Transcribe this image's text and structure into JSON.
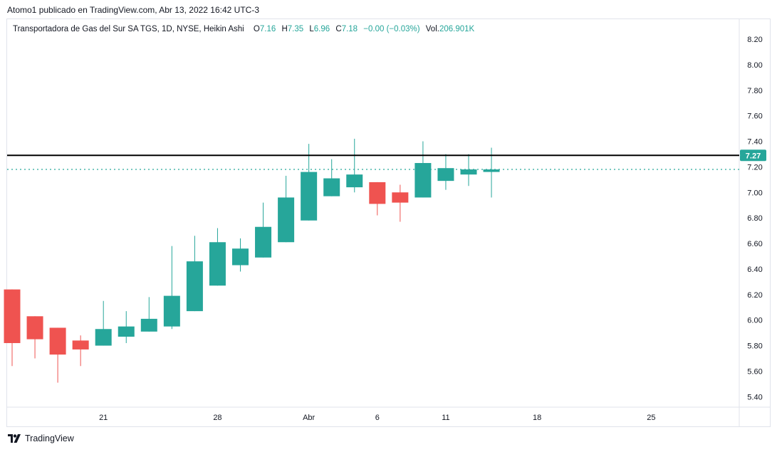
{
  "publish_line": "Atomo1 publicado en TradingView.com, Abr 13, 2022 16:42 UTC-3",
  "legend": {
    "symbol": "Transportadora de Gas del Sur SA TGS, 1D, NYSE, Heikin Ashi",
    "o_label": "O",
    "o_value": "7.16",
    "h_label": "H",
    "h_value": "7.35",
    "l_label": "L",
    "l_value": "6.96",
    "c_label": "C",
    "c_value": "7.18",
    "change": "−0.00 (−0.03%)",
    "vol_label": "Vol.",
    "vol_value": "206.901K"
  },
  "footer": {
    "brand": "TradingView"
  },
  "colors": {
    "up": "#26a69a",
    "down": "#ef5350",
    "hline": "#000000",
    "last_price_line": "#26a69a",
    "axis_text": "#131722"
  },
  "chart_data": {
    "type": "candlestick",
    "style": "Heikin Ashi",
    "ylim": [
      5.3,
      8.3
    ],
    "y_ticks": [
      "8.20",
      "8.00",
      "7.80",
      "7.60",
      "7.40",
      "7.20",
      "7.00",
      "6.80",
      "6.60",
      "6.40",
      "6.20",
      "6.00",
      "5.80",
      "5.60",
      "5.40"
    ],
    "x_ticks": [
      {
        "label": "21",
        "index": 4
      },
      {
        "label": "28",
        "index": 9
      },
      {
        "label": "Abr",
        "index": 13
      },
      {
        "label": "6",
        "index": 16
      },
      {
        "label": "11",
        "index": 19
      },
      {
        "label": "18",
        "index": 23
      },
      {
        "label": "25",
        "index": 28
      }
    ],
    "candles": [
      {
        "o": 6.24,
        "h": 6.24,
        "l": 5.64,
        "c": 5.82
      },
      {
        "o": 6.03,
        "h": 6.03,
        "l": 5.7,
        "c": 5.85
      },
      {
        "o": 5.94,
        "h": 5.94,
        "l": 5.51,
        "c": 5.73
      },
      {
        "o": 5.84,
        "h": 5.88,
        "l": 5.64,
        "c": 5.77
      },
      {
        "o": 5.8,
        "h": 6.15,
        "l": 5.8,
        "c": 5.93
      },
      {
        "o": 5.87,
        "h": 6.07,
        "l": 5.82,
        "c": 5.95
      },
      {
        "o": 5.91,
        "h": 6.18,
        "l": 5.91,
        "c": 6.01
      },
      {
        "o": 5.95,
        "h": 6.58,
        "l": 5.93,
        "c": 6.19
      },
      {
        "o": 6.07,
        "h": 6.66,
        "l": 6.07,
        "c": 6.46
      },
      {
        "o": 6.27,
        "h": 6.72,
        "l": 6.27,
        "c": 6.61
      },
      {
        "o": 6.43,
        "h": 6.64,
        "l": 6.38,
        "c": 6.56
      },
      {
        "o": 6.49,
        "h": 6.92,
        "l": 6.49,
        "c": 6.73
      },
      {
        "o": 6.61,
        "h": 7.13,
        "l": 6.61,
        "c": 6.96
      },
      {
        "o": 6.78,
        "h": 7.38,
        "l": 6.78,
        "c": 7.16
      },
      {
        "o": 6.97,
        "h": 7.26,
        "l": 6.97,
        "c": 7.11
      },
      {
        "o": 7.04,
        "h": 7.42,
        "l": 7.0,
        "c": 7.14
      },
      {
        "o": 7.08,
        "h": 7.08,
        "l": 6.82,
        "c": 6.91
      },
      {
        "o": 7.0,
        "h": 7.06,
        "l": 6.77,
        "c": 6.92
      },
      {
        "o": 6.96,
        "h": 7.4,
        "l": 6.96,
        "c": 7.23
      },
      {
        "o": 7.09,
        "h": 7.3,
        "l": 7.02,
        "c": 7.19
      },
      {
        "o": 7.14,
        "h": 7.3,
        "l": 7.05,
        "c": 7.18
      },
      {
        "o": 7.16,
        "h": 7.35,
        "l": 6.96,
        "c": 7.18
      }
    ],
    "horizontal_line": 7.29,
    "last_price_line": 7.18,
    "price_label": "7.27"
  }
}
